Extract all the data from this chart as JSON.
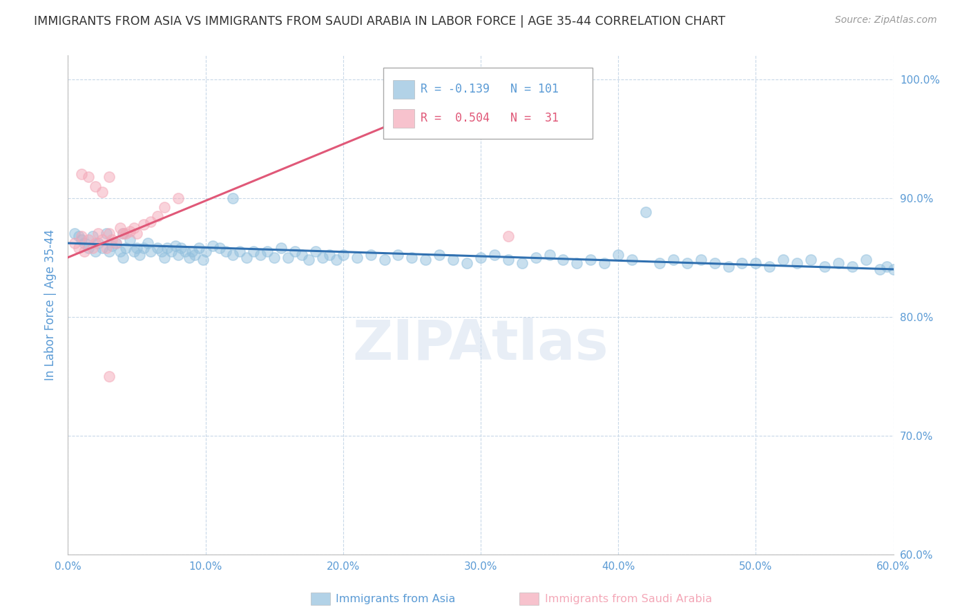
{
  "title": "IMMIGRANTS FROM ASIA VS IMMIGRANTS FROM SAUDI ARABIA IN LABOR FORCE | AGE 35-44 CORRELATION CHART",
  "source": "Source: ZipAtlas.com",
  "ylabel": "In Labor Force | Age 35-44",
  "xlim": [
    0.0,
    0.6
  ],
  "ylim": [
    0.6,
    1.02
  ],
  "yticks": [
    0.6,
    0.7,
    0.8,
    0.9,
    1.0
  ],
  "xticks": [
    0.0,
    0.1,
    0.2,
    0.3,
    0.4,
    0.5,
    0.6
  ],
  "blue_color": "#92c0de",
  "pink_color": "#f4a8b8",
  "blue_line_color": "#3070b0",
  "pink_line_color": "#e05878",
  "title_color": "#333333",
  "axis_color": "#5b9bd5",
  "grid_color": "#c8d8e8",
  "background_color": "#ffffff",
  "legend_r_blue": "-0.139",
  "legend_n_blue": "101",
  "legend_r_pink": "0.504",
  "legend_n_pink": "31",
  "blue_scatter_x": [
    0.005,
    0.008,
    0.01,
    0.012,
    0.015,
    0.018,
    0.02,
    0.022,
    0.025,
    0.028,
    0.03,
    0.032,
    0.035,
    0.038,
    0.04,
    0.04,
    0.042,
    0.045,
    0.048,
    0.05,
    0.052,
    0.055,
    0.058,
    0.06,
    0.065,
    0.068,
    0.07,
    0.072,
    0.075,
    0.078,
    0.08,
    0.082,
    0.085,
    0.088,
    0.09,
    0.092,
    0.095,
    0.098,
    0.1,
    0.105,
    0.11,
    0.115,
    0.12,
    0.125,
    0.13,
    0.135,
    0.14,
    0.145,
    0.15,
    0.155,
    0.16,
    0.165,
    0.17,
    0.175,
    0.18,
    0.185,
    0.19,
    0.195,
    0.2,
    0.21,
    0.22,
    0.23,
    0.24,
    0.25,
    0.26,
    0.27,
    0.28,
    0.29,
    0.3,
    0.31,
    0.32,
    0.33,
    0.34,
    0.35,
    0.36,
    0.37,
    0.38,
    0.39,
    0.4,
    0.41,
    0.42,
    0.43,
    0.44,
    0.45,
    0.46,
    0.47,
    0.48,
    0.49,
    0.5,
    0.51,
    0.52,
    0.53,
    0.54,
    0.55,
    0.56,
    0.57,
    0.58,
    0.59,
    0.595,
    0.6,
    0.12
  ],
  "blue_scatter_y": [
    0.87,
    0.868,
    0.865,
    0.862,
    0.858,
    0.868,
    0.855,
    0.862,
    0.858,
    0.87,
    0.855,
    0.86,
    0.862,
    0.855,
    0.87,
    0.85,
    0.858,
    0.865,
    0.855,
    0.858,
    0.852,
    0.858,
    0.862,
    0.855,
    0.858,
    0.855,
    0.85,
    0.858,
    0.855,
    0.86,
    0.852,
    0.858,
    0.855,
    0.85,
    0.855,
    0.852,
    0.858,
    0.848,
    0.855,
    0.86,
    0.858,
    0.855,
    0.852,
    0.855,
    0.85,
    0.855,
    0.852,
    0.855,
    0.85,
    0.858,
    0.85,
    0.855,
    0.852,
    0.848,
    0.855,
    0.85,
    0.852,
    0.848,
    0.852,
    0.85,
    0.852,
    0.848,
    0.852,
    0.85,
    0.848,
    0.852,
    0.848,
    0.845,
    0.85,
    0.852,
    0.848,
    0.845,
    0.85,
    0.852,
    0.848,
    0.845,
    0.848,
    0.845,
    0.852,
    0.848,
    0.888,
    0.845,
    0.848,
    0.845,
    0.848,
    0.845,
    0.842,
    0.845,
    0.845,
    0.842,
    0.848,
    0.845,
    0.848,
    0.842,
    0.845,
    0.842,
    0.848,
    0.84,
    0.842,
    0.84,
    0.9
  ],
  "pink_scatter_x": [
    0.005,
    0.008,
    0.01,
    0.012,
    0.015,
    0.018,
    0.02,
    0.022,
    0.025,
    0.028,
    0.03,
    0.032,
    0.035,
    0.038,
    0.04,
    0.042,
    0.045,
    0.048,
    0.05,
    0.055,
    0.06,
    0.065,
    0.07,
    0.08,
    0.01,
    0.015,
    0.02,
    0.025,
    0.03,
    0.32,
    0.03
  ],
  "pink_scatter_y": [
    0.862,
    0.858,
    0.868,
    0.855,
    0.865,
    0.858,
    0.862,
    0.87,
    0.865,
    0.858,
    0.87,
    0.865,
    0.862,
    0.875,
    0.87,
    0.87,
    0.872,
    0.875,
    0.87,
    0.878,
    0.88,
    0.885,
    0.892,
    0.9,
    0.92,
    0.918,
    0.91,
    0.905,
    0.918,
    0.868,
    0.75
  ],
  "blue_trend_x": [
    0.0,
    0.6
  ],
  "blue_trend_y": [
    0.862,
    0.84
  ],
  "pink_trend_x": [
    0.0,
    0.325
  ],
  "pink_trend_y": [
    0.85,
    1.005
  ]
}
